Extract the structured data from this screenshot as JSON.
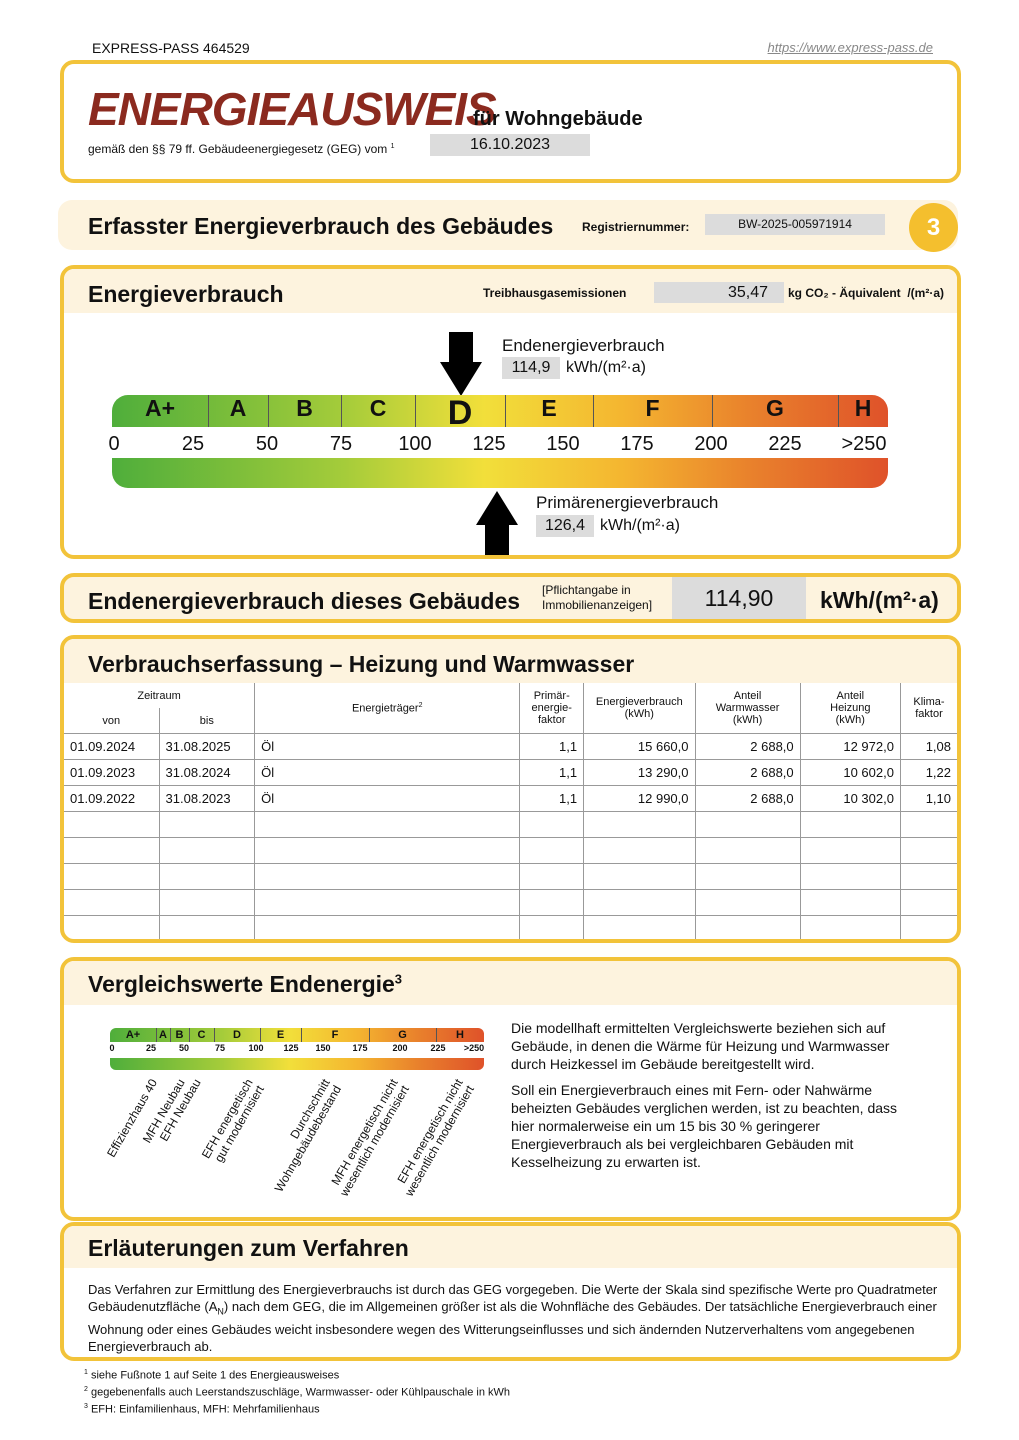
{
  "header": {
    "left": "EXPRESS-PASS 464529",
    "right": "https://www.express-pass.de"
  },
  "title": {
    "main": "ENERGIEAUSWEIS",
    "sub": "für Wohngebäude",
    "law": "gemäß den §§ 79 ff. Gebäudeenergiegesetz (GEG) vom",
    "law_sup": "1",
    "date": "16.10.2023"
  },
  "section": {
    "title": "Erfasster Energieverbrauch des Gebäudes",
    "reg_label": "Registriernummer:",
    "reg": "BW-2025-005971914",
    "page": "3"
  },
  "consumption": {
    "title": "Energieverbrauch",
    "ghg_label": "Treibhausgasemissionen",
    "ghg_value": "35,47",
    "ghg_unit": "kg CO₂ - Äquivalent  /(m²·a)",
    "end_label": "Endenergieverbrauch",
    "end_value": "114,9",
    "end_unit": "kWh/(m²·a)",
    "primary_label": "Primärenergieverbrauch",
    "primary_value": "126,4",
    "primary_unit": "kWh/(m²·a)"
  },
  "scale": {
    "classes": [
      "A+",
      "A",
      "B",
      "C",
      "D",
      "E",
      "F",
      "G",
      "H"
    ],
    "ticks": [
      "0",
      "25",
      "50",
      "75",
      "100",
      "125",
      "150",
      "175",
      "200",
      "225",
      ">250"
    ]
  },
  "final": {
    "title": "Endenergieverbrauch dieses Gebäudes",
    "note": [
      "[Pflichtangabe in",
      "Immobilienanzeigen]"
    ],
    "value": "114,90",
    "unit": "kWh/(m²·a)"
  },
  "table": {
    "title": "Verbrauchserfassung – Heizung und Warmwasser",
    "period": "Zeitraum",
    "from": "von",
    "to": "bis",
    "carrier": "Energieträger",
    "carrier_sup": "2",
    "headers": [
      [
        "Primär-",
        "energie-",
        "faktor"
      ],
      [
        "Energieverbrauch",
        "(kWh)"
      ],
      [
        "Anteil",
        "Warmwasser",
        "(kWh)"
      ],
      [
        "Anteil",
        "Heizung",
        "(kWh)"
      ],
      [
        "Klima-",
        "faktor"
      ]
    ],
    "rows": [
      [
        "01.09.2024",
        "31.08.2025",
        "Öl",
        "1,1",
        "15 660,0",
        "2 688,0",
        "12 972,0",
        "1,08"
      ],
      [
        "01.09.2023",
        "31.08.2024",
        "Öl",
        "1,1",
        "13 290,0",
        "2 688,0",
        "10 602,0",
        "1,22"
      ],
      [
        "01.09.2022",
        "31.08.2023",
        "Öl",
        "1,1",
        "12 990,0",
        "2 688,0",
        "10 302,0",
        "1,10"
      ]
    ]
  },
  "comparison": {
    "title": "Vergleichswerte Endenergie",
    "title_sup": "3",
    "labels": [
      [
        "Effizienzhaus 40"
      ],
      [
        "MFH Neubau"
      ],
      [
        "EFH Neubau"
      ],
      [
        "EFH energetisch",
        "gut modernisiert"
      ],
      [
        "Durchschnitt",
        "Wohngebäudebestand"
      ],
      [
        "MFH energetisch nicht",
        "wesentlich modernisiert"
      ],
      [
        "EFH energetisch nicht",
        "wesentlich modernisiert"
      ]
    ],
    "paragraphs": [
      "Die modellhaft ermittelten Vergleichswerte beziehen sich auf Gebäude, in denen die Wärme für Heizung und Warmwasser durch Heizkessel im Gebäude bereitgestellt wird.",
      "Soll ein Energieverbrauch eines mit Fern- oder Nahwärme beheizten Gebäudes verglichen werden, ist zu beachten, dass hier normalerweise ein um 15 bis 30 % geringerer Energieverbrauch als bei vergleichbaren Gebäuden mit Kesselheizung zu erwarten ist."
    ]
  },
  "explanation": {
    "title": "Erläuterungen zum Verfahren",
    "text_a": "Das Verfahren zur Ermittlung des Energieverbrauchs ist durch das GEG vorgegeben. Die Werte der Skala sind spezifische Werte pro Quadratmeter Gebäudenutzfläche (A",
    "text_sub": "N",
    "text_b": ") nach dem GEG, die im Allgemeinen größer ist als die Wohnfläche des Gebäudes. Der tatsächliche Energieverbrauch einer Wohnung oder eines Gebäudes weicht insbesondere wegen des Witterungseinflusses und sich ändernden Nutzerverhaltens vom angegebenen Energieverbrauch ab."
  },
  "footnotes": [
    {
      "mark": "1",
      "text": "siehe Fußnote 1 auf Seite 1 des Energieausweises"
    },
    {
      "mark": "2",
      "text": "gegebenenfalls auch Leerstandszuschläge, Warmwasser- oder Kühlpauschale in kWh"
    },
    {
      "mark": "3",
      "text": "EFH: Einfamilienhaus, MFH: Mehrfamilienhaus"
    }
  ]
}
